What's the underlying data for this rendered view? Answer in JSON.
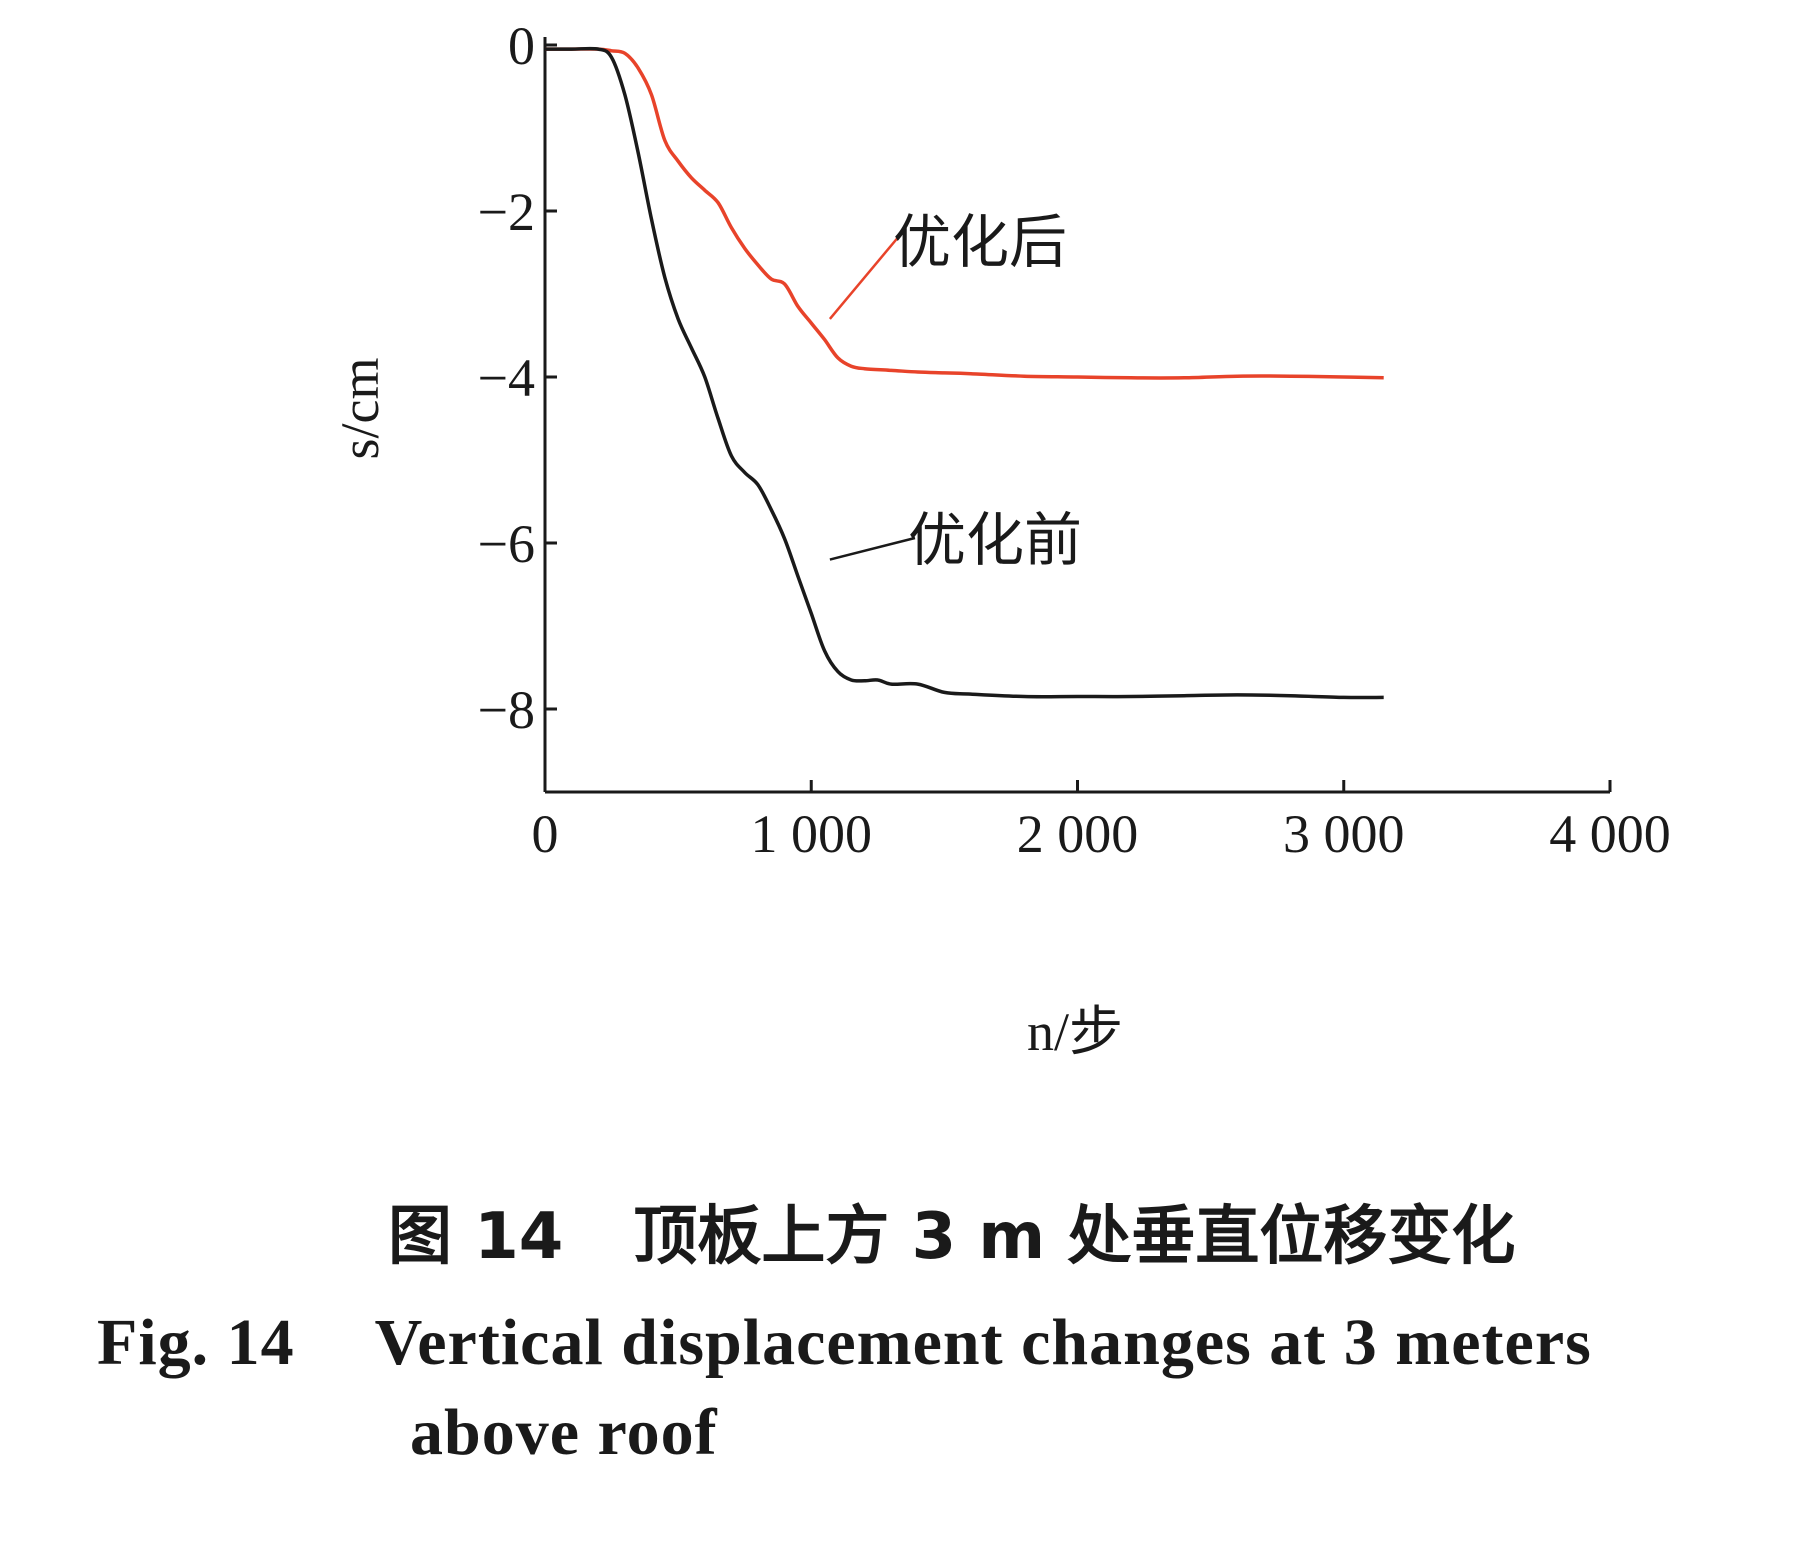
{
  "chart_data": {
    "type": "line",
    "title": "",
    "xlabel": "n/步",
    "ylabel": "s/cm",
    "xlim": [
      0,
      4000
    ],
    "ylim": [
      -9,
      0
    ],
    "xticks": [
      {
        "value": 0,
        "label": "0"
      },
      {
        "value": 1000,
        "label": "1 000"
      },
      {
        "value": 2000,
        "label": "2 000"
      },
      {
        "value": 3000,
        "label": "3 000"
      },
      {
        "value": 4000,
        "label": "4 000"
      }
    ],
    "yticks": [
      {
        "value": 0,
        "label": "0"
      },
      {
        "value": -2,
        "label": "−2"
      },
      {
        "value": -4,
        "label": "−4"
      },
      {
        "value": -6,
        "label": "−6"
      },
      {
        "value": -8,
        "label": "−8"
      }
    ],
    "grid": false,
    "series": [
      {
        "name": "优化后",
        "color": "#e8432a",
        "label_anchor": {
          "x": 1070,
          "y": -3.3
        },
        "x": [
          0,
          100,
          200,
          250,
          300,
          350,
          400,
          450,
          500,
          550,
          600,
          650,
          700,
          750,
          800,
          850,
          900,
          950,
          1000,
          1050,
          1100,
          1150,
          1200,
          1300,
          1400,
          1500,
          1600,
          1800,
          2000,
          2200,
          2400,
          2600,
          2800,
          3000,
          3150
        ],
        "y": [
          -0.05,
          -0.05,
          -0.05,
          -0.07,
          -0.1,
          -0.28,
          -0.6,
          -1.15,
          -1.4,
          -1.6,
          -1.75,
          -1.9,
          -2.2,
          -2.45,
          -2.65,
          -2.82,
          -2.88,
          -3.15,
          -3.35,
          -3.55,
          -3.77,
          -3.87,
          -3.9,
          -3.92,
          -3.94,
          -3.95,
          -3.96,
          -3.99,
          -4.0,
          -4.01,
          -4.01,
          -3.99,
          -3.99,
          -4.0,
          -4.01
        ]
      },
      {
        "name": "优化前",
        "color": "#1a1a1a",
        "label_anchor": {
          "x": 1070,
          "y": -6.2
        },
        "x": [
          0,
          100,
          200,
          250,
          300,
          350,
          400,
          450,
          500,
          550,
          600,
          650,
          700,
          750,
          800,
          850,
          900,
          950,
          1000,
          1050,
          1100,
          1150,
          1200,
          1250,
          1300,
          1400,
          1500,
          1600,
          1800,
          2000,
          2200,
          2400,
          2600,
          2800,
          3000,
          3150
        ],
        "y": [
          -0.05,
          -0.05,
          -0.05,
          -0.15,
          -0.6,
          -1.3,
          -2.1,
          -2.8,
          -3.3,
          -3.65,
          -4.0,
          -4.5,
          -4.95,
          -5.15,
          -5.3,
          -5.6,
          -5.95,
          -6.4,
          -6.85,
          -7.3,
          -7.55,
          -7.65,
          -7.66,
          -7.65,
          -7.7,
          -7.7,
          -7.8,
          -7.82,
          -7.85,
          -7.85,
          -7.85,
          -7.84,
          -7.83,
          -7.84,
          -7.86,
          -7.86
        ]
      }
    ]
  },
  "caption": {
    "cn_number": "图 14",
    "cn_title": "顶板上方 3 m 处垂直位移变化",
    "en_number": "Fig.  14",
    "en_title_line1": "Vertical displacement changes at 3 meters",
    "en_title_line2": "above roof"
  }
}
